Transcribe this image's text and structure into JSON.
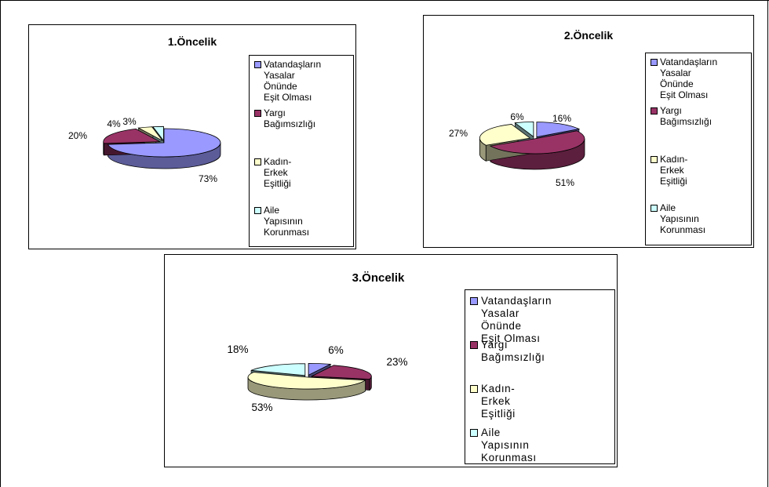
{
  "colors": {
    "purple": "#9999ff",
    "maroon": "#993366",
    "cream": "#ffffcc",
    "lightblue": "#ccffff"
  },
  "chart_data": [
    {
      "type": "pie",
      "title": "1.Öncelik",
      "categories": [
        "Vatandaşların Yasalar Önünde Eşit Olması",
        "Yargı Bağımsızlığı",
        "Kadın-Erkek Eşitliği",
        "Aile Yapısının Korunması"
      ],
      "values": [
        73,
        20,
        4,
        3
      ],
      "labels": [
        "73%",
        "20%",
        "4%",
        "3%"
      ],
      "legend": "right"
    },
    {
      "type": "pie",
      "title": "2.Öncelik",
      "categories": [
        "Vatandaşların Yasalar Önünde Eşit Olması",
        "Yargı Bağımsızlığı",
        "Kadın-Erkek Eşitliği",
        "Aile Yapısının Korunması"
      ],
      "values": [
        16,
        51,
        27,
        6
      ],
      "labels": [
        "16%",
        "51%",
        "27%",
        "6%"
      ],
      "legend": "right"
    },
    {
      "type": "pie",
      "title": "3.Öncelik",
      "categories": [
        "Vatandaşların Yasalar Önünde Eşit Olması",
        "Yargı Bağımsızlığı",
        "Kadın-Erkek Eşitliği",
        "Aile Yapısının Korunması"
      ],
      "values": [
        6,
        23,
        53,
        18
      ],
      "labels": [
        "6%",
        "23%",
        "53%",
        "18%"
      ],
      "legend": "right"
    }
  ],
  "legend_lines": [
    [
      "Vatandaşların",
      "Yasalar Önünde",
      "Eşit Olması"
    ],
    [
      "Yargı Bağımsızlığı"
    ],
    [
      "Kadın-Erkek",
      "Eşitliği"
    ],
    [
      "Aile Yapısının",
      "Korunması"
    ]
  ]
}
